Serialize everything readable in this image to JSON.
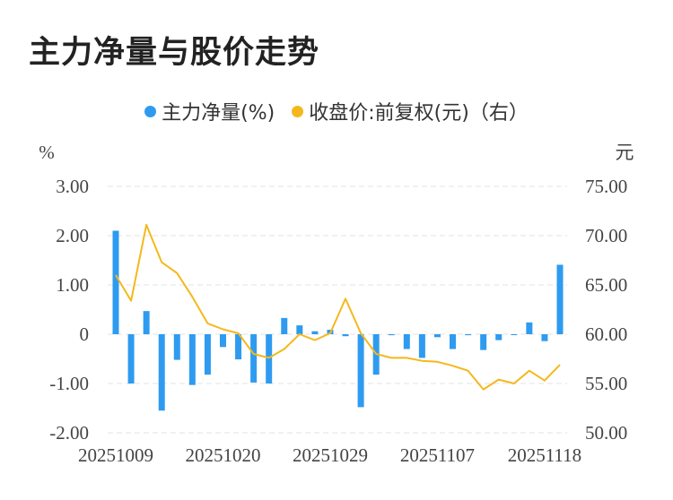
{
  "title": "主力净量与股价走势",
  "chart_data": {
    "type": "bar+line",
    "legend": [
      {
        "name": "主力净量(%)",
        "color": "#2e9bf0"
      },
      {
        "name": "收盘价:前复权(元)（右）",
        "color": "#f5b81c"
      }
    ],
    "left_axis": {
      "unit": "%",
      "min": -2,
      "max": 3,
      "ticks": [
        "3.00",
        "2.00",
        "1.00",
        "0",
        "-1.00",
        "-2.00"
      ]
    },
    "right_axis": {
      "unit": "元",
      "min": 50,
      "max": 75,
      "ticks": [
        "75.00",
        "70.00",
        "65.00",
        "60.00",
        "55.00",
        "50.00"
      ]
    },
    "x_tick_labels": [
      "20251009",
      "20251020",
      "20251029",
      "20251107",
      "20251118"
    ],
    "x_tick_indices": [
      0,
      7,
      14,
      21,
      28
    ],
    "bars": [
      2.1,
      -1.0,
      0.47,
      -1.55,
      -0.52,
      -1.03,
      -0.82,
      -0.26,
      -0.51,
      -0.98,
      -1.0,
      0.33,
      0.18,
      0.06,
      0.09,
      -0.04,
      -1.48,
      -0.82,
      -0.02,
      -0.3,
      -0.48,
      -0.06,
      -0.3,
      -0.02,
      -0.32,
      -0.12,
      -0.01,
      0.24,
      -0.14,
      1.41
    ],
    "prices": [
      66.0,
      63.4,
      71.1,
      67.3,
      66.2,
      63.8,
      61.1,
      60.5,
      60.1,
      58.0,
      57.6,
      58.5,
      60.0,
      59.4,
      60.1,
      63.6,
      60.1,
      58.0,
      57.6,
      57.6,
      57.3,
      57.2,
      56.8,
      56.3,
      54.4,
      55.4,
      55.0,
      56.3,
      55.3,
      56.9
    ]
  }
}
